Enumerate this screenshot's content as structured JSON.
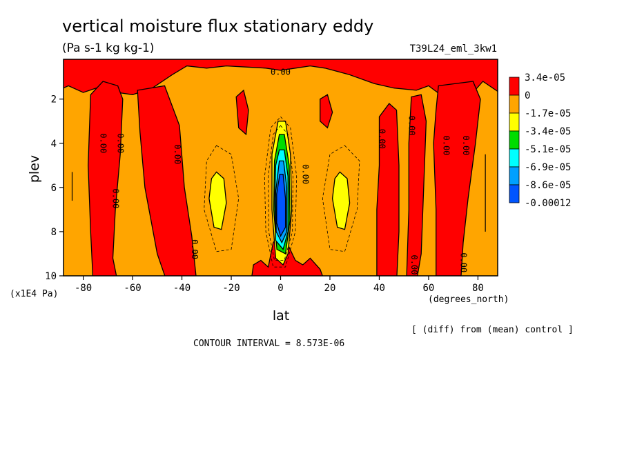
{
  "chart_data": {
    "type": "heatmap",
    "title": "vertical moisture flux stationary eddy",
    "units": "(Pa s-1 kg kg-1)",
    "run_label": "T39L24_eml_3kw1",
    "xlabel": "lat",
    "x_units": "(degrees_north)",
    "ylabel": "plev",
    "y_units": "(x1E4 Pa)",
    "xlim": [
      -88,
      88
    ],
    "ylim": [
      10,
      0.2
    ],
    "x_ticks": [
      "-80",
      "-60",
      "-40",
      "-20",
      "0",
      "20",
      "40",
      "60",
      "80"
    ],
    "y_ticks": [
      "2",
      "4",
      "6",
      "8",
      "10"
    ],
    "contour_interval": "CONTOUR INTERVAL = 8.573E-06",
    "footnote": "[ (diff) from (mean) control ]",
    "contour_label": "0.00",
    "colorbar": {
      "levels": [
        "3.4e-05",
        "0",
        "-1.7e-05",
        "-3.4e-05",
        "-5.1e-05",
        "-6.9e-05",
        "-8.6e-05",
        "-0.00012"
      ],
      "colors": [
        "#ff0000",
        "#ffa500",
        "#ffff00",
        "#00dd00",
        "#00ffff",
        "#00a0ff",
        "#0055ff"
      ]
    },
    "regions": [
      {
        "level": "positive",
        "color": "#ff0000",
        "lat_range": [
          -88,
          88
        ],
        "plev_range": [
          0.2,
          1.8
        ],
        "note": "upper band"
      },
      {
        "level": "positive",
        "color": "#ff0000",
        "lat_range": [
          -76,
          -64
        ],
        "plev_range": [
          1.0,
          10
        ]
      },
      {
        "level": "positive",
        "color": "#ff0000",
        "lat_range": [
          -58,
          -37
        ],
        "plev_range": [
          1.5,
          10
        ]
      },
      {
        "level": "positive",
        "color": "#ff0000",
        "lat_range": [
          -10,
          16
        ],
        "plev_range": [
          8.5,
          10
        ]
      },
      {
        "level": "positive",
        "color": "#ff0000",
        "lat_range": [
          39,
          48
        ],
        "plev_range": [
          2.0,
          10
        ]
      },
      {
        "level": "positive",
        "color": "#ff0000",
        "lat_range": [
          54,
          58
        ],
        "plev_range": [
          1.5,
          10
        ]
      },
      {
        "level": "positive",
        "color": "#ff0000",
        "lat_range": [
          62,
          80
        ],
        "plev_range": [
          1.0,
          10
        ]
      },
      {
        "level": "-1.7e-05",
        "color": "#ffff00",
        "lat_range": [
          -29,
          -21
        ],
        "plev_range": [
          5.3,
          8.0
        ]
      },
      {
        "level": "-1.7e-05",
        "color": "#ffff00",
        "lat_range": [
          21,
          29
        ],
        "plev_range": [
          5.3,
          8.0
        ]
      },
      {
        "level": "-8.6e-05",
        "color": "#0055ff",
        "lat_range": [
          -3,
          4
        ],
        "plev_range": [
          5.0,
          9.0
        ]
      }
    ]
  }
}
